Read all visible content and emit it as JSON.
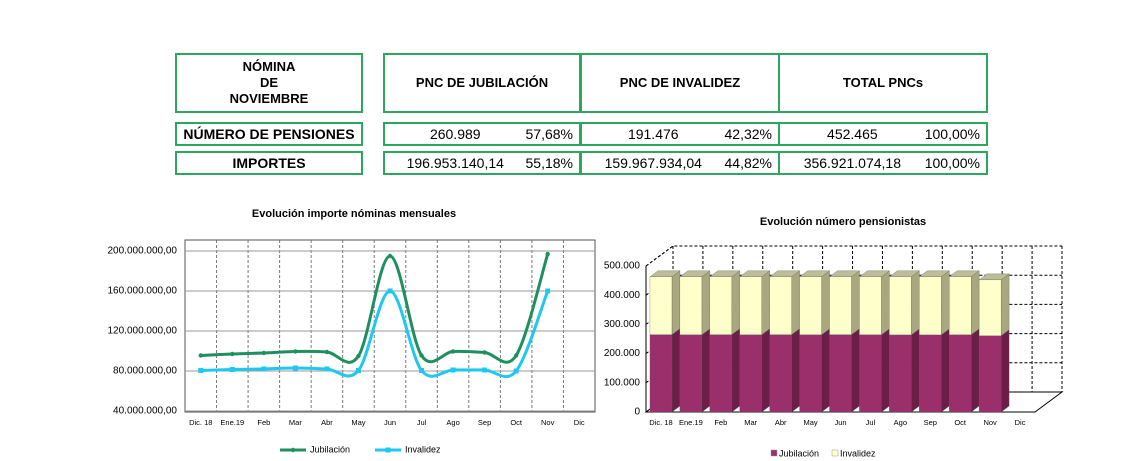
{
  "table": {
    "header": [
      "NÓMINA\nDE\nNOVIEMBRE",
      "PNC DE JUBILACIÓN",
      "PNC DE INVALIDEZ",
      "TOTAL PNCs"
    ],
    "rows": [
      [
        "NÚMERO DE PENSIONES",
        "260.989",
        "57,68%",
        "191.476",
        "42,32%",
        "452.465",
        "100,00%"
      ],
      [
        "IMPORTES",
        "196.953.140,14",
        "55,18%",
        "159.967.934,04",
        "44,82%",
        "356.921.074,18",
        "100,00%"
      ]
    ]
  },
  "chart_data": [
    {
      "type": "line",
      "title": "Evolución importe nóminas mensuales",
      "categories": [
        "Dic. 18",
        "Ene.19",
        "Feb",
        "Mar",
        "Abr",
        "May",
        "Jun",
        "Jul",
        "Ago",
        "Sep",
        "Oct",
        "Nov",
        "Dic"
      ],
      "series": [
        {
          "name": "Jubilación",
          "color": "#1f8f5f",
          "values": [
            95500000,
            97000000,
            98000000,
            99500000,
            99000000,
            95000000,
            195000000,
            95500000,
            99500000,
            98500000,
            95500000,
            196953140.14,
            null
          ]
        },
        {
          "name": "Invalidez",
          "color": "#1ec8f0",
          "values": [
            80500000,
            81500000,
            82000000,
            83000000,
            82000000,
            80500000,
            160000000,
            80500000,
            81000000,
            81000000,
            80000000,
            159967934.04,
            null
          ]
        }
      ],
      "ylim": [
        40000000,
        200000000
      ],
      "yticks": [
        {
          "value": 40000000,
          "label": "40.000.000,00"
        },
        {
          "value": 80000000,
          "label": "80.000.000,00"
        },
        {
          "value": 120000000,
          "label": "120.000.000,00"
        },
        {
          "value": 160000000,
          "label": "160.000.000,00"
        },
        {
          "value": 200000000,
          "label": "200.000.000,00"
        }
      ],
      "grid": true,
      "legend": "bottom"
    },
    {
      "type": "stacked-bar-3d",
      "title": "Evolución número pensionistas",
      "categories": [
        "Dic. 18",
        "Ene.19",
        "Feb",
        "Mar",
        "Abr",
        "May",
        "Jun",
        "Jul",
        "Ago",
        "Sep",
        "Oct",
        "Nov",
        "Dic"
      ],
      "series": [
        {
          "name": "Jubilación",
          "color": "#9b2f6b",
          "values": [
            265000,
            264500,
            265000,
            264500,
            265000,
            264500,
            265000,
            264500,
            264000,
            264000,
            264500,
            260989,
            null
          ]
        },
        {
          "name": "Invalidez",
          "color": "#ffffcc",
          "values": [
            198000,
            198500,
            198000,
            198500,
            198000,
            198500,
            198000,
            198500,
            199000,
            199000,
            198500,
            191476,
            null
          ]
        }
      ],
      "ylim": [
        0,
        500000
      ],
      "yticks": [
        0,
        {
          "value": 100000,
          "label": "100.000"
        },
        {
          "value": 200000,
          "label": "200.000"
        },
        {
          "value": 300000,
          "label": "300.000"
        },
        {
          "value": 400000,
          "label": "400.000"
        },
        {
          "value": 500000,
          "label": "500.000"
        }
      ],
      "grid": true,
      "legend": "bottom"
    }
  ]
}
